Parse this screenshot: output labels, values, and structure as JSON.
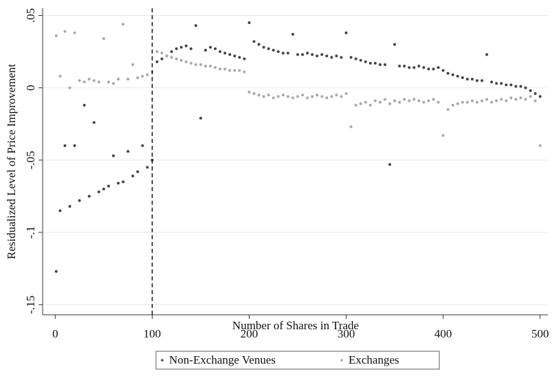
{
  "chart_data": {
    "type": "scatter",
    "xlabel": "Number of Shares in Trade",
    "ylabel": "Residualized Level of Price Improvement",
    "x": [
      1,
      5,
      10,
      15,
      20,
      25,
      30,
      35,
      40,
      45,
      50,
      55,
      60,
      65,
      70,
      75,
      80,
      85,
      90,
      95,
      100,
      105,
      110,
      115,
      120,
      125,
      130,
      135,
      140,
      145,
      150,
      155,
      160,
      165,
      170,
      175,
      180,
      185,
      190,
      195,
      200,
      205,
      210,
      215,
      220,
      225,
      230,
      235,
      240,
      245,
      250,
      255,
      260,
      265,
      270,
      275,
      280,
      285,
      290,
      295,
      300,
      305,
      310,
      315,
      320,
      325,
      330,
      335,
      340,
      345,
      350,
      355,
      360,
      365,
      370,
      375,
      380,
      385,
      390,
      395,
      400,
      405,
      410,
      415,
      420,
      425,
      430,
      435,
      440,
      445,
      450,
      455,
      460,
      465,
      470,
      475,
      480,
      485,
      490,
      495,
      500
    ],
    "series": [
      {
        "name": "Non-Exchange Venues",
        "color": "#444444",
        "values": [
          -0.127,
          -0.085,
          -0.04,
          -0.082,
          -0.04,
          -0.078,
          -0.012,
          -0.075,
          -0.024,
          -0.072,
          -0.07,
          -0.068,
          -0.047,
          -0.066,
          -0.065,
          -0.044,
          -0.061,
          -0.058,
          -0.04,
          -0.055,
          -0.05,
          0.018,
          0.02,
          0.022,
          0.025,
          0.027,
          0.028,
          0.029,
          0.027,
          0.043,
          -0.021,
          0.026,
          0.028,
          0.027,
          0.025,
          0.024,
          0.023,
          0.022,
          0.021,
          0.02,
          0.045,
          0.032,
          0.03,
          0.028,
          0.027,
          0.026,
          0.025,
          0.024,
          0.024,
          0.037,
          0.023,
          0.023,
          0.024,
          0.023,
          0.022,
          0.023,
          0.022,
          0.021,
          0.022,
          0.021,
          0.038,
          0.021,
          0.02,
          0.019,
          0.018,
          0.017,
          0.017,
          0.016,
          0.016,
          -0.053,
          0.03,
          0.015,
          0.015,
          0.014,
          0.014,
          0.015,
          0.014,
          0.013,
          0.013,
          0.014,
          0.012,
          0.01,
          0.009,
          0.008,
          0.007,
          0.006,
          0.006,
          0.005,
          0.005,
          0.023,
          0.004,
          0.003,
          0.003,
          0.002,
          0.002,
          0.001,
          0.001,
          0.0,
          -0.002,
          -0.004,
          -0.006
        ]
      },
      {
        "name": "Exchanges",
        "color": "#a8a8a8",
        "values": [
          0.036,
          0.008,
          0.039,
          0.0,
          0.038,
          0.005,
          0.004,
          0.006,
          0.005,
          0.004,
          0.034,
          0.004,
          0.003,
          0.006,
          0.044,
          0.006,
          0.016,
          0.007,
          0.008,
          0.009,
          0.011,
          0.025,
          0.024,
          0.022,
          0.021,
          0.02,
          0.019,
          0.018,
          0.017,
          0.016,
          0.016,
          0.015,
          0.015,
          0.014,
          0.013,
          0.013,
          0.012,
          0.012,
          0.012,
          0.011,
          -0.003,
          -0.004,
          -0.005,
          -0.006,
          -0.005,
          -0.007,
          -0.006,
          -0.005,
          -0.006,
          -0.007,
          -0.006,
          -0.005,
          -0.007,
          -0.006,
          -0.005,
          -0.006,
          -0.007,
          -0.006,
          -0.005,
          -0.006,
          -0.004,
          -0.027,
          -0.012,
          -0.011,
          -0.01,
          -0.012,
          -0.009,
          -0.01,
          -0.008,
          -0.011,
          -0.009,
          -0.01,
          -0.008,
          -0.009,
          -0.008,
          -0.009,
          -0.01,
          -0.009,
          -0.008,
          -0.01,
          -0.033,
          -0.015,
          -0.012,
          -0.011,
          -0.01,
          -0.01,
          -0.009,
          -0.01,
          -0.009,
          -0.008,
          -0.01,
          -0.009,
          -0.008,
          -0.009,
          -0.007,
          -0.008,
          -0.007,
          -0.008,
          -0.006,
          -0.009,
          -0.04
        ]
      }
    ],
    "xlim": [
      -13,
      508
    ],
    "xticks": [
      0,
      100,
      200,
      300,
      400,
      500
    ],
    "ylim": [
      -0.157,
      0.055
    ],
    "yticks": [
      {
        "value": 0.05,
        "label": ".05"
      },
      0,
      {
        "value": -0.05,
        "label": "-.05"
      },
      {
        "value": -0.1,
        "label": "-.1"
      },
      {
        "value": -0.15,
        "label": "-.15"
      }
    ],
    "vline": 100,
    "grid": true,
    "legend": "bottom"
  }
}
